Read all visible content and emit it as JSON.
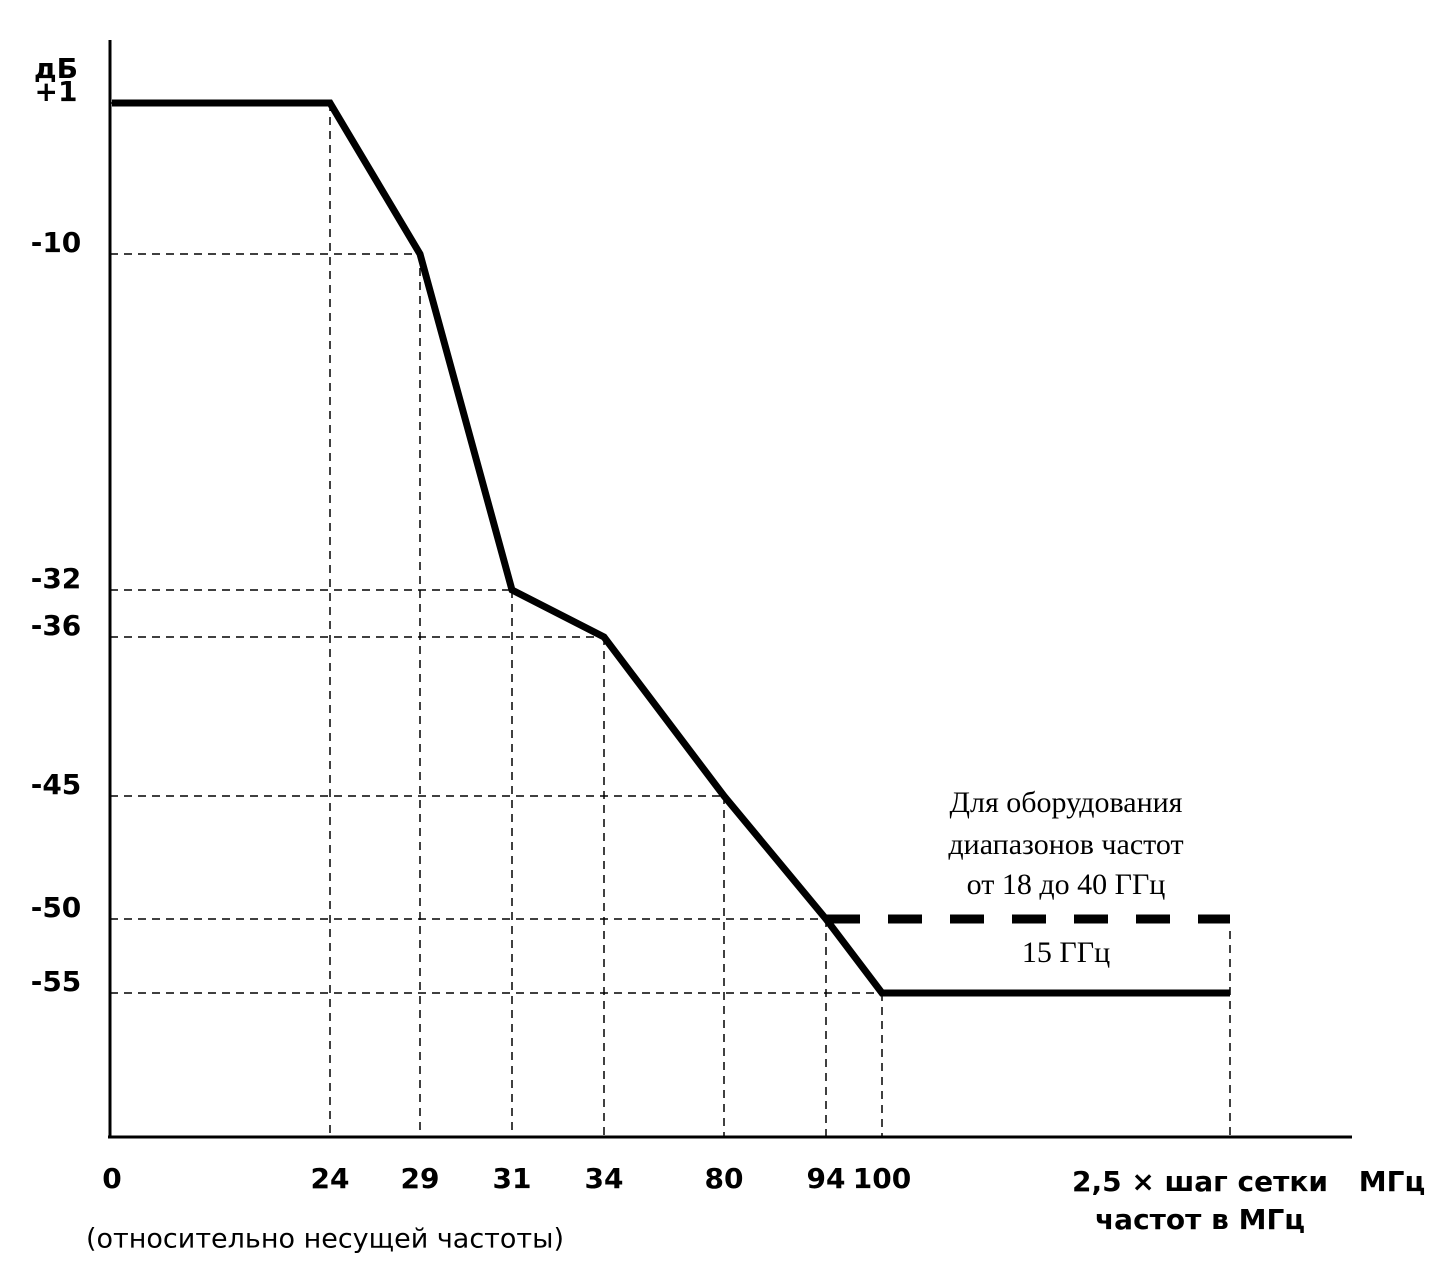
{
  "chart_data": {
    "type": "line",
    "y_label": "дБ",
    "x_label": "МГц",
    "x_note": "(относительно несущей частоты)",
    "categories": [
      "0",
      "24",
      "29",
      "31",
      "34",
      "80",
      "94",
      "100",
      "2,5 × шаг сетки частот в МГц"
    ],
    "yticks": [
      {
        "value": 1,
        "label": "+1"
      },
      -10,
      -32,
      -36,
      -45,
      -50,
      -55
    ],
    "series": [
      {
        "color": "#000000",
        "style": "solid",
        "values": [
          1,
          1,
          -10,
          -32,
          -36,
          -45,
          -50,
          -55,
          -55
        ]
      },
      {
        "color": "#000000",
        "style": "dashed",
        "values": [
          null,
          null,
          null,
          null,
          null,
          null,
          -50,
          -50,
          -50
        ]
      }
    ],
    "annotations": [
      "Для оборудования",
      "диапазонов частот",
      "от 18 до 40 ГГц",
      "15 ГГц"
    ],
    "grid": true
  }
}
